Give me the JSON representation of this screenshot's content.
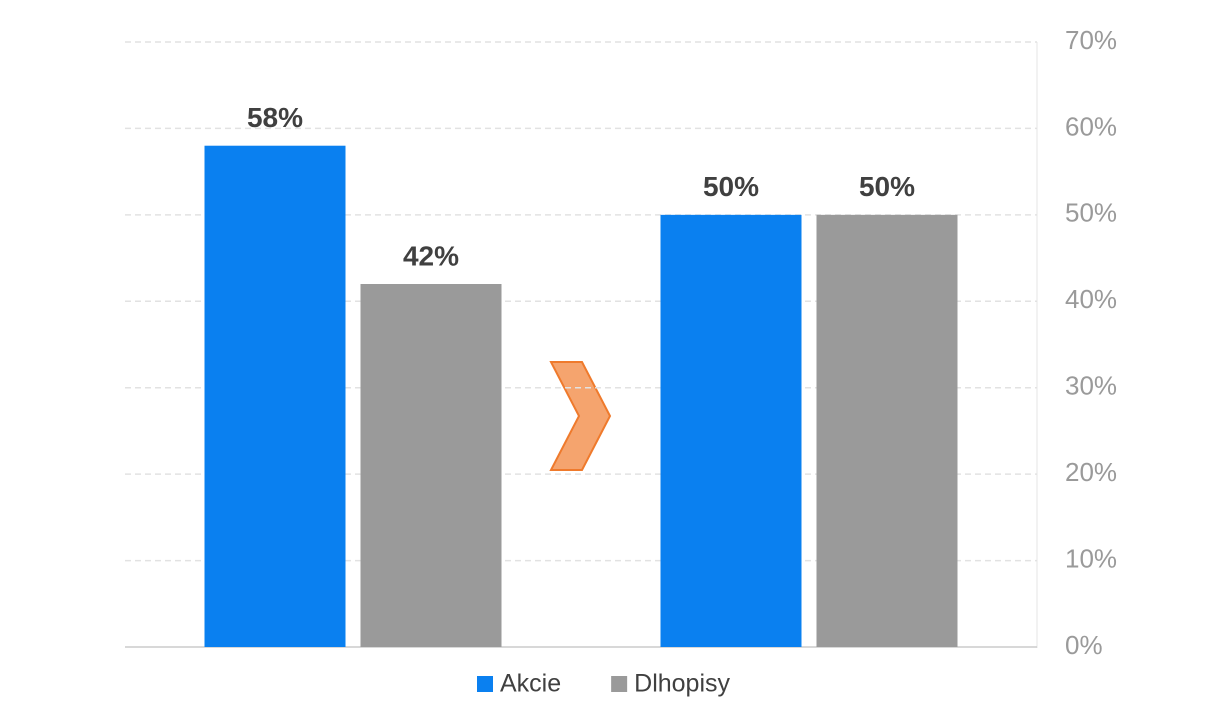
{
  "chart_data": {
    "type": "bar",
    "categories": [
      null,
      null
    ],
    "series": [
      {
        "name": "Akcie",
        "color": "#0a80f0",
        "values": [
          58,
          50
        ],
        "value_labels": [
          "58%",
          "50%"
        ]
      },
      {
        "name": "Dlhopisy",
        "color": "#9a9a9a",
        "values": [
          42,
          50
        ],
        "value_labels": [
          "42%",
          "50%"
        ]
      }
    ],
    "ylim": [
      0,
      70
    ],
    "yticks": [
      {
        "value": 0,
        "label": "0%"
      },
      {
        "value": 10,
        "label": "10%"
      },
      {
        "value": 20,
        "label": "20%"
      },
      {
        "value": 30,
        "label": "30%"
      },
      {
        "value": 40,
        "label": "40%"
      },
      {
        "value": 50,
        "label": "50%"
      },
      {
        "value": 60,
        "label": "60%"
      },
      {
        "value": 70,
        "label": "70%"
      }
    ],
    "grid": true,
    "legend": "bottom"
  }
}
